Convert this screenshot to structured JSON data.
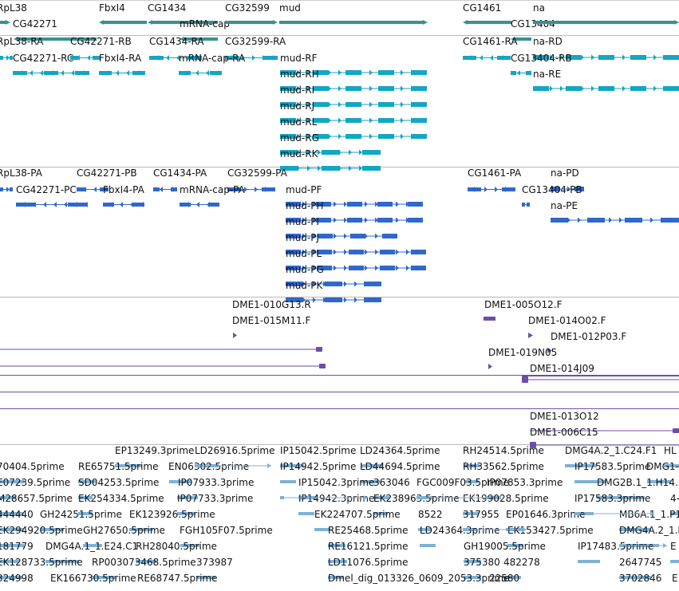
{
  "colors": {
    "gene": "#3b9090",
    "mrna": "#14a6c2",
    "protein": "#2f68cc",
    "clone": "#6b4fa6",
    "est": "#7fb1d6",
    "separator": "#b8b8b8"
  },
  "tracks": {
    "genes": {
      "features": [
        {
          "label": "RpL38"
        },
        {
          "label": "CG42271"
        },
        {
          "label": "FbxI4"
        },
        {
          "label": "CG1434"
        },
        {
          "label": "mRNA-cap"
        },
        {
          "label": "CG32599"
        },
        {
          "label": "mud"
        },
        {
          "label": "CG1461"
        },
        {
          "label": "CG13404"
        },
        {
          "label": "na"
        }
      ]
    },
    "transcripts": {
      "features": [
        {
          "label": "RpL38-RA"
        },
        {
          "label": "CG42271-RB"
        },
        {
          "label": "CG1434-RA"
        },
        {
          "label": "CG32599-RA"
        },
        {
          "label": "CG42271-RC"
        },
        {
          "label": "FbxI4-RA"
        },
        {
          "label": "mRNA-cap-RA"
        },
        {
          "label": "mud-RF"
        },
        {
          "label": "mud-RH"
        },
        {
          "label": "mud-RI"
        },
        {
          "label": "mud-RJ"
        },
        {
          "label": "mud-RL"
        },
        {
          "label": "mud-RG"
        },
        {
          "label": "mud-RK"
        },
        {
          "label": "CG1461-RA"
        },
        {
          "label": "na-RD"
        },
        {
          "label": "CG13404-RB"
        },
        {
          "label": "na-RE"
        }
      ]
    },
    "proteins": {
      "features": [
        {
          "label": "RpL38-PA"
        },
        {
          "label": "CG42271-PB"
        },
        {
          "label": "CG1434-PA"
        },
        {
          "label": "CG32599-PA"
        },
        {
          "label": "CG42271-PC"
        },
        {
          "label": "FbxI4-PA"
        },
        {
          "label": "mRNA-cap-PA"
        },
        {
          "label": "mud-PF"
        },
        {
          "label": "mud-PH"
        },
        {
          "label": "mud-PI"
        },
        {
          "label": "mud-PJ"
        },
        {
          "label": "mud-PL"
        },
        {
          "label": "mud-PG"
        },
        {
          "label": "mud-PK"
        },
        {
          "label": "CG1461-PA"
        },
        {
          "label": "na-PD"
        },
        {
          "label": "CG13404-PB"
        },
        {
          "label": "na-PE"
        }
      ]
    },
    "clones": {
      "features": [
        {
          "label": "DME1-010G13.R"
        },
        {
          "label": "DME1-015M11.F"
        },
        {
          "label": "DME1-005O12.F"
        },
        {
          "label": "DME1-014O02.F"
        },
        {
          "label": "DME1-012P03.F"
        },
        {
          "label": "DME1-019N05"
        },
        {
          "label": "DME1-014J09"
        },
        {
          "label": "DME1-013O12"
        },
        {
          "label": "DME1-006C15"
        }
      ]
    },
    "ests": {
      "features": [
        {
          "label": "EP13249.3prime"
        },
        {
          "label": "LD26916.5prime"
        },
        {
          "label": "IP15042.5prime"
        },
        {
          "label": "LD24364.5prime"
        },
        {
          "label": "RH24514.5prime"
        },
        {
          "label": "DMG4A.2_1.C24.F1"
        },
        {
          "label": "HL"
        },
        {
          "label": "70404.5prime"
        },
        {
          "label": "RE65751.5prime"
        },
        {
          "label": "EN06302.5prime"
        },
        {
          "label": "IP14942.5prime"
        },
        {
          "label": "LD44694.5prime"
        },
        {
          "label": "RH33562.5prime"
        },
        {
          "label": "IP17583.5prime"
        },
        {
          "label": "DMG1-"
        },
        {
          "label": "E07239.5prime"
        },
        {
          "label": "SD04253.5prime"
        },
        {
          "label": "IP07933.3prime"
        },
        {
          "label": "IP15042.3prime"
        },
        {
          "label": "363046"
        },
        {
          "label": "FGC009F03.5prime"
        },
        {
          "label": "IP07853.3prime"
        },
        {
          "label": "DMG2B.1_1.H14."
        },
        {
          "label": "M28657.5prime"
        },
        {
          "label": "EK254334.5prime"
        },
        {
          "label": "IP07733.3prime"
        },
        {
          "label": "IP14942.3prime"
        },
        {
          "label": "EK238963.5prime"
        },
        {
          "label": "EK199028.5prime"
        },
        {
          "label": "IP17583.3prime"
        },
        {
          "label": "4-"
        },
        {
          "label": "444440"
        },
        {
          "label": "GH24251.5prime"
        },
        {
          "label": "EK123926.5prime"
        },
        {
          "label": "EK224707.5prime"
        },
        {
          "label": "8522"
        },
        {
          "label": "317955"
        },
        {
          "label": "EP01646.3prime"
        },
        {
          "label": "MB6A.1_1.P1"
        },
        {
          "label": "EK294920.5prime"
        },
        {
          "label": "GH27650.5prime"
        },
        {
          "label": "FGH105F07.5prime"
        },
        {
          "label": "RE25468.5prime"
        },
        {
          "label": "LD24364.3prime"
        },
        {
          "label": "EK153427.5prime"
        },
        {
          "label": "DMG4A.2_1.I"
        },
        {
          "label": "181779"
        },
        {
          "label": "DMG4A.1_1.E24.C1"
        },
        {
          "label": "RH28040.5prime"
        },
        {
          "label": "RE16121.5prime"
        },
        {
          "label": "GH19005.5prime"
        },
        {
          "label": "IP17483.5prime"
        },
        {
          "label": "E"
        },
        {
          "label": "EK128733.5prime"
        },
        {
          "label": "RP003073468.5prime"
        },
        {
          "label": "373987"
        },
        {
          "label": "LD11076.5prime"
        },
        {
          "label": "375380"
        },
        {
          "label": "482278"
        },
        {
          "label": "2647745"
        },
        {
          "label": "324998"
        },
        {
          "label": "EK166730.5prime"
        },
        {
          "label": "RE68747.5prime"
        },
        {
          "label": "Dmel_dig_013326_0609_2053.3prime"
        },
        {
          "label": "22580"
        },
        {
          "label": "3702846"
        },
        {
          "label": "E"
        }
      ]
    }
  }
}
